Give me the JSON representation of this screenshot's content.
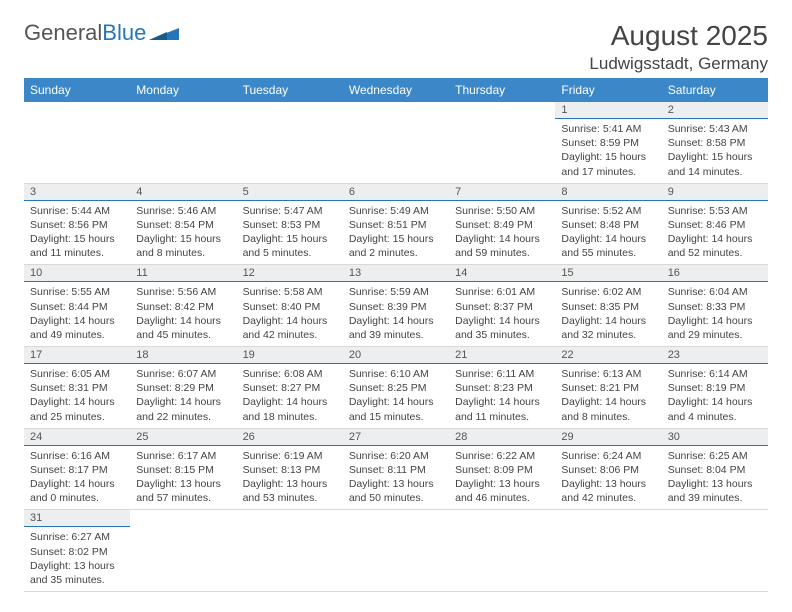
{
  "brand": {
    "part1": "General",
    "part2": "Blue"
  },
  "title": "August 2025",
  "location": "Ludwigsstadt, Germany",
  "colors": {
    "header_bg": "#3b87c8",
    "header_text": "#ffffff",
    "day_head_bg": "#eceeef",
    "day_head_border": "#2576b9",
    "text": "#444444",
    "brand_gray": "#555555",
    "brand_blue": "#2576b9",
    "background": "#ffffff"
  },
  "typography": {
    "title_fontsize": 28,
    "location_fontsize": 17,
    "body_fontsize": 10.5,
    "header_fontsize": 12
  },
  "weekdays": [
    "Sunday",
    "Monday",
    "Tuesday",
    "Wednesday",
    "Thursday",
    "Friday",
    "Saturday"
  ],
  "days": [
    {
      "date": 1,
      "sunrise": "5:41 AM",
      "sunset": "8:59 PM",
      "daylight": "15 hours and 17 minutes."
    },
    {
      "date": 2,
      "sunrise": "5:43 AM",
      "sunset": "8:58 PM",
      "daylight": "15 hours and 14 minutes."
    },
    {
      "date": 3,
      "sunrise": "5:44 AM",
      "sunset": "8:56 PM",
      "daylight": "15 hours and 11 minutes."
    },
    {
      "date": 4,
      "sunrise": "5:46 AM",
      "sunset": "8:54 PM",
      "daylight": "15 hours and 8 minutes."
    },
    {
      "date": 5,
      "sunrise": "5:47 AM",
      "sunset": "8:53 PM",
      "daylight": "15 hours and 5 minutes."
    },
    {
      "date": 6,
      "sunrise": "5:49 AM",
      "sunset": "8:51 PM",
      "daylight": "15 hours and 2 minutes."
    },
    {
      "date": 7,
      "sunrise": "5:50 AM",
      "sunset": "8:49 PM",
      "daylight": "14 hours and 59 minutes."
    },
    {
      "date": 8,
      "sunrise": "5:52 AM",
      "sunset": "8:48 PM",
      "daylight": "14 hours and 55 minutes."
    },
    {
      "date": 9,
      "sunrise": "5:53 AM",
      "sunset": "8:46 PM",
      "daylight": "14 hours and 52 minutes."
    },
    {
      "date": 10,
      "sunrise": "5:55 AM",
      "sunset": "8:44 PM",
      "daylight": "14 hours and 49 minutes."
    },
    {
      "date": 11,
      "sunrise": "5:56 AM",
      "sunset": "8:42 PM",
      "daylight": "14 hours and 45 minutes."
    },
    {
      "date": 12,
      "sunrise": "5:58 AM",
      "sunset": "8:40 PM",
      "daylight": "14 hours and 42 minutes."
    },
    {
      "date": 13,
      "sunrise": "5:59 AM",
      "sunset": "8:39 PM",
      "daylight": "14 hours and 39 minutes."
    },
    {
      "date": 14,
      "sunrise": "6:01 AM",
      "sunset": "8:37 PM",
      "daylight": "14 hours and 35 minutes."
    },
    {
      "date": 15,
      "sunrise": "6:02 AM",
      "sunset": "8:35 PM",
      "daylight": "14 hours and 32 minutes."
    },
    {
      "date": 16,
      "sunrise": "6:04 AM",
      "sunset": "8:33 PM",
      "daylight": "14 hours and 29 minutes."
    },
    {
      "date": 17,
      "sunrise": "6:05 AM",
      "sunset": "8:31 PM",
      "daylight": "14 hours and 25 minutes."
    },
    {
      "date": 18,
      "sunrise": "6:07 AM",
      "sunset": "8:29 PM",
      "daylight": "14 hours and 22 minutes."
    },
    {
      "date": 19,
      "sunrise": "6:08 AM",
      "sunset": "8:27 PM",
      "daylight": "14 hours and 18 minutes."
    },
    {
      "date": 20,
      "sunrise": "6:10 AM",
      "sunset": "8:25 PM",
      "daylight": "14 hours and 15 minutes."
    },
    {
      "date": 21,
      "sunrise": "6:11 AM",
      "sunset": "8:23 PM",
      "daylight": "14 hours and 11 minutes."
    },
    {
      "date": 22,
      "sunrise": "6:13 AM",
      "sunset": "8:21 PM",
      "daylight": "14 hours and 8 minutes."
    },
    {
      "date": 23,
      "sunrise": "6:14 AM",
      "sunset": "8:19 PM",
      "daylight": "14 hours and 4 minutes."
    },
    {
      "date": 24,
      "sunrise": "6:16 AM",
      "sunset": "8:17 PM",
      "daylight": "14 hours and 0 minutes."
    },
    {
      "date": 25,
      "sunrise": "6:17 AM",
      "sunset": "8:15 PM",
      "daylight": "13 hours and 57 minutes."
    },
    {
      "date": 26,
      "sunrise": "6:19 AM",
      "sunset": "8:13 PM",
      "daylight": "13 hours and 53 minutes."
    },
    {
      "date": 27,
      "sunrise": "6:20 AM",
      "sunset": "8:11 PM",
      "daylight": "13 hours and 50 minutes."
    },
    {
      "date": 28,
      "sunrise": "6:22 AM",
      "sunset": "8:09 PM",
      "daylight": "13 hours and 46 minutes."
    },
    {
      "date": 29,
      "sunrise": "6:24 AM",
      "sunset": "8:06 PM",
      "daylight": "13 hours and 42 minutes."
    },
    {
      "date": 30,
      "sunrise": "6:25 AM",
      "sunset": "8:04 PM",
      "daylight": "13 hours and 39 minutes."
    },
    {
      "date": 31,
      "sunrise": "6:27 AM",
      "sunset": "8:02 PM",
      "daylight": "13 hours and 35 minutes."
    }
  ],
  "first_weekday_index": 5,
  "labels": {
    "sunrise_prefix": "Sunrise: ",
    "sunset_prefix": "Sunset: ",
    "daylight_prefix": "Daylight: "
  }
}
